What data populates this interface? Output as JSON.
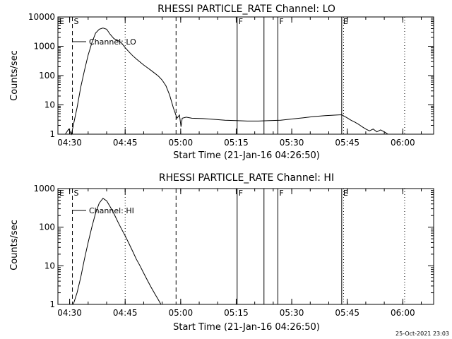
{
  "footer": {
    "timestamp": "25-Oct-2021 23:03"
  },
  "chart_data": [
    {
      "type": "line",
      "title": "RHESSI PARTICLE_RATE Channel: LO",
      "xlabel": "Start Time (21-Jan-16 04:26:50)",
      "ylabel": "Counts/sec",
      "yscale": "log",
      "ylim": [
        1,
        10000
      ],
      "yticks": [
        1,
        10,
        100,
        1000,
        10000
      ],
      "ytick_labels": [
        "1",
        "10",
        "100",
        "1000",
        "10000"
      ],
      "xlim": [
        "04:26:50",
        "06:08:20"
      ],
      "xticks": [
        "04:30",
        "04:45",
        "05:00",
        "05:15",
        "05:30",
        "05:45",
        "06:00"
      ],
      "legend": {
        "label": "Channel: LO",
        "position": "upper-left"
      },
      "event_markers": [
        {
          "time": "04:26:50",
          "label": "E",
          "style": "solid"
        },
        {
          "time": "04:30:45",
          "label": "S",
          "style": "dashed"
        },
        {
          "time": "04:58:45",
          "label": "",
          "style": "dashed"
        },
        {
          "time": "05:15:15",
          "label": "F",
          "style": "solid"
        },
        {
          "time": "05:22:30",
          "label": "",
          "style": "solid"
        },
        {
          "time": "05:26:15",
          "label": "F",
          "style": "solid"
        },
        {
          "time": "05:43:30",
          "label": "E",
          "style": "solid"
        },
        {
          "time": "04:45:00",
          "label": "",
          "style": "dotted"
        },
        {
          "time": "05:44:00",
          "label": "",
          "style": "dotted"
        },
        {
          "time": "06:00:30",
          "label": "",
          "style": "dotted"
        }
      ],
      "series": [
        {
          "name": "Channel: LO",
          "x": [
            "04:28:50",
            "04:29:45",
            "04:30:30",
            "04:31:00",
            "04:32:00",
            "04:33:00",
            "04:34:00",
            "04:35:00",
            "04:36:00",
            "04:37:00",
            "04:38:00",
            "04:39:00",
            "04:40:00",
            "04:41:00",
            "04:42:00",
            "04:43:00",
            "04:44:00",
            "04:45:00",
            "04:46:00",
            "04:47:00",
            "04:48:00",
            "04:49:00",
            "04:50:00",
            "04:51:00",
            "04:52:00",
            "04:53:00",
            "04:54:00",
            "04:55:00",
            "04:56:00",
            "04:57:00",
            "04:58:00",
            "04:59:00",
            "04:59:40",
            "05:00:05",
            "05:00:25",
            "05:01:30",
            "05:03:00",
            "05:06:00",
            "05:09:00",
            "05:12:00",
            "05:15:00",
            "05:18:00",
            "05:21:00",
            "05:24:00",
            "05:27:00",
            "05:30:00",
            "05:33:00",
            "05:36:00",
            "05:39:00",
            "05:42:00",
            "05:43:30",
            "05:45:00",
            "05:46:00",
            "05:47:00",
            "05:48:00",
            "05:49:00",
            "05:50:00",
            "05:51:00",
            "05:52:00",
            "05:53:00",
            "05:54:00",
            "05:55:00",
            "05:56:00"
          ],
          "y": [
            1,
            1.5,
            1,
            2,
            8,
            40,
            150,
            500,
            1300,
            2800,
            3800,
            4200,
            3800,
            2500,
            1800,
            1600,
            1300,
            900,
            650,
            480,
            370,
            290,
            230,
            185,
            150,
            120,
            95,
            70,
            45,
            22,
            8,
            3.5,
            4.5,
            1.8,
            3.5,
            3.8,
            3.5,
            3.4,
            3.2,
            3.0,
            2.9,
            2.8,
            2.8,
            2.9,
            3.0,
            3.3,
            3.6,
            4.0,
            4.3,
            4.5,
            4.6,
            3.6,
            3.0,
            2.6,
            2.2,
            1.8,
            1.5,
            1.3,
            1.5,
            1.2,
            1.4,
            1.2,
            1
          ]
        }
      ]
    },
    {
      "type": "line",
      "title": "RHESSI PARTICLE_RATE Channel: HI",
      "xlabel": "Start Time (21-Jan-16 04:26:50)",
      "ylabel": "Counts/sec",
      "yscale": "log",
      "ylim": [
        1,
        1000
      ],
      "yticks": [
        1,
        10,
        100,
        1000
      ],
      "ytick_labels": [
        "1",
        "10",
        "100",
        "1000"
      ],
      "xlim": [
        "04:26:50",
        "06:08:20"
      ],
      "xticks": [
        "04:30",
        "04:45",
        "05:00",
        "05:15",
        "05:30",
        "05:45",
        "06:00"
      ],
      "legend": {
        "label": "Channel: HI",
        "position": "upper-left"
      },
      "event_markers": [
        {
          "time": "04:26:50",
          "label": "E",
          "style": "solid"
        },
        {
          "time": "04:30:45",
          "label": "S",
          "style": "dashed"
        },
        {
          "time": "04:58:45",
          "label": "",
          "style": "dashed"
        },
        {
          "time": "05:15:15",
          "label": "F",
          "style": "solid"
        },
        {
          "time": "05:22:30",
          "label": "",
          "style": "solid"
        },
        {
          "time": "05:26:15",
          "label": "F",
          "style": "solid"
        },
        {
          "time": "05:43:30",
          "label": "E",
          "style": "solid"
        },
        {
          "time": "04:45:00",
          "label": "",
          "style": "dotted"
        },
        {
          "time": "05:44:00",
          "label": "",
          "style": "dotted"
        },
        {
          "time": "06:00:30",
          "label": "",
          "style": "dotted"
        }
      ],
      "series": [
        {
          "name": "Channel: HI",
          "x": [
            "04:31:00",
            "04:32:00",
            "04:33:00",
            "04:34:00",
            "04:35:00",
            "04:36:00",
            "04:37:00",
            "04:38:00",
            "04:39:00",
            "04:40:00",
            "04:41:00",
            "04:42:00",
            "04:43:00",
            "04:44:00",
            "04:45:00",
            "04:46:00",
            "04:47:00",
            "04:48:00",
            "04:49:00",
            "04:50:00",
            "04:51:00",
            "04:52:00",
            "04:53:00",
            "04:54:00",
            "04:54:40"
          ],
          "y": [
            1,
            2,
            5,
            15,
            40,
            100,
            230,
            420,
            560,
            480,
            330,
            220,
            140,
            90,
            60,
            38,
            24,
            15,
            10,
            6.5,
            4.2,
            2.8,
            1.9,
            1.3,
            1
          ]
        }
      ]
    }
  ]
}
